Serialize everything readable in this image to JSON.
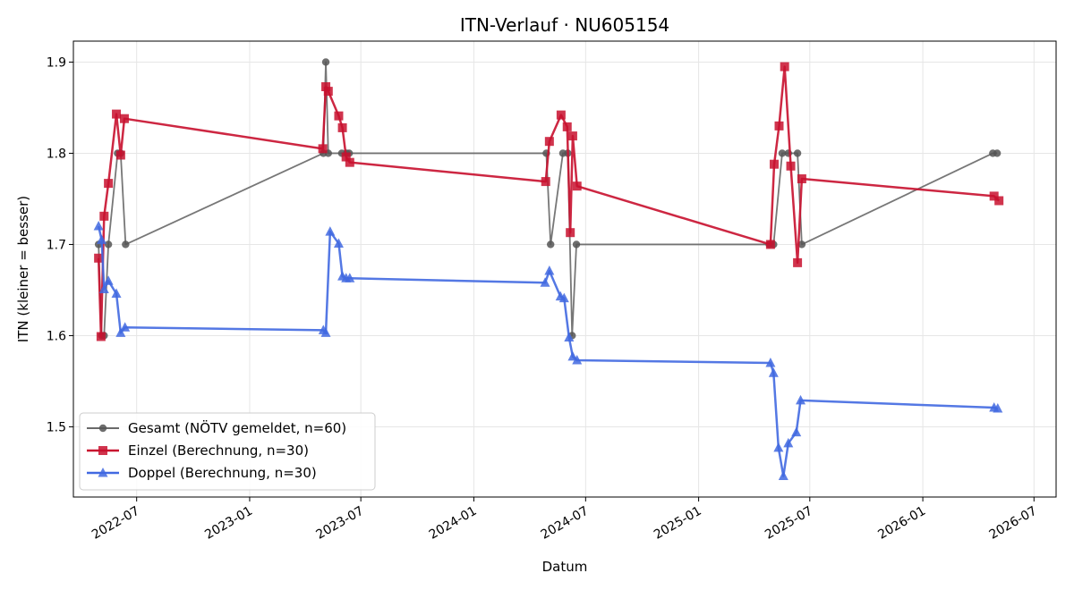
{
  "chart_data": {
    "type": "line",
    "title": "ITN-Verlauf · NU605154",
    "xlabel": "Datum",
    "ylabel": "ITN  (kleiner = besser)",
    "x_axis": "date",
    "xlim": [
      "2022-03-20",
      "2026-08-06"
    ],
    "ylim": [
      1.423,
      1.923
    ],
    "x_ticks": [
      "2022-07",
      "2023-01",
      "2023-07",
      "2024-01",
      "2024-07",
      "2025-01",
      "2025-07",
      "2026-01",
      "2026-07"
    ],
    "y_ticks": [
      1.5,
      1.6,
      1.7,
      1.8,
      1.9
    ],
    "grid": true,
    "legend_position": "lower-left",
    "series": [
      {
        "name": "Gesamt (NÖTV gemeldet, n=60)",
        "color": "#555555",
        "marker": "circle",
        "points": [
          {
            "x": "2022-04-30",
            "y": 1.7
          },
          {
            "x": "2022-05-05",
            "y": 1.6
          },
          {
            "x": "2022-05-09",
            "y": 1.6
          },
          {
            "x": "2022-05-16",
            "y": 1.7
          },
          {
            "x": "2022-05-31",
            "y": 1.8
          },
          {
            "x": "2022-06-05",
            "y": 1.8
          },
          {
            "x": "2022-06-13",
            "y": 1.7
          },
          {
            "x": "2023-05-01",
            "y": 1.8
          },
          {
            "x": "2023-05-05",
            "y": 1.9
          },
          {
            "x": "2023-05-09",
            "y": 1.8
          },
          {
            "x": "2023-05-31",
            "y": 1.8
          },
          {
            "x": "2023-06-08",
            "y": 1.8
          },
          {
            "x": "2023-06-12",
            "y": 1.8
          },
          {
            "x": "2024-04-28",
            "y": 1.8
          },
          {
            "x": "2024-05-05",
            "y": 1.7
          },
          {
            "x": "2024-05-25",
            "y": 1.8
          },
          {
            "x": "2024-06-02",
            "y": 1.8
          },
          {
            "x": "2024-06-09",
            "y": 1.6
          },
          {
            "x": "2024-06-16",
            "y": 1.7
          },
          {
            "x": "2025-04-26",
            "y": 1.7
          },
          {
            "x": "2025-05-03",
            "y": 1.7
          },
          {
            "x": "2025-05-17",
            "y": 1.8
          },
          {
            "x": "2025-05-27",
            "y": 1.8
          },
          {
            "x": "2025-06-11",
            "y": 1.8
          },
          {
            "x": "2025-06-18",
            "y": 1.7
          },
          {
            "x": "2026-04-25",
            "y": 1.8
          },
          {
            "x": "2026-05-02",
            "y": 1.8
          }
        ]
      },
      {
        "name": "Einzel (Berechnung, n=30)",
        "color": "#c8102e",
        "marker": "square",
        "points": [
          {
            "x": "2022-04-30",
            "y": 1.685
          },
          {
            "x": "2022-05-04",
            "y": 1.599
          },
          {
            "x": "2022-05-09",
            "y": 1.731
          },
          {
            "x": "2022-05-16",
            "y": 1.767
          },
          {
            "x": "2022-05-29",
            "y": 1.843
          },
          {
            "x": "2022-06-05",
            "y": 1.798
          },
          {
            "x": "2022-06-11",
            "y": 1.838
          },
          {
            "x": "2023-04-30",
            "y": 1.805
          },
          {
            "x": "2023-05-05",
            "y": 1.873
          },
          {
            "x": "2023-05-09",
            "y": 1.868
          },
          {
            "x": "2023-05-26",
            "y": 1.841
          },
          {
            "x": "2023-06-01",
            "y": 1.828
          },
          {
            "x": "2023-06-07",
            "y": 1.796
          },
          {
            "x": "2023-06-13",
            "y": 1.79
          },
          {
            "x": "2024-04-27",
            "y": 1.769
          },
          {
            "x": "2024-05-03",
            "y": 1.813
          },
          {
            "x": "2024-05-22",
            "y": 1.842
          },
          {
            "x": "2024-06-01",
            "y": 1.829
          },
          {
            "x": "2024-06-06",
            "y": 1.713
          },
          {
            "x": "2024-06-10",
            "y": 1.819
          },
          {
            "x": "2024-06-17",
            "y": 1.764
          },
          {
            "x": "2025-04-28",
            "y": 1.7
          },
          {
            "x": "2025-05-04",
            "y": 1.788
          },
          {
            "x": "2025-05-12",
            "y": 1.83
          },
          {
            "x": "2025-05-21",
            "y": 1.895
          },
          {
            "x": "2025-05-31",
            "y": 1.786
          },
          {
            "x": "2025-06-11",
            "y": 1.68
          },
          {
            "x": "2025-06-18",
            "y": 1.772
          },
          {
            "x": "2026-04-27",
            "y": 1.753
          },
          {
            "x": "2026-05-05",
            "y": 1.748
          }
        ]
      },
      {
        "name": "Doppel (Berechnung, n=30)",
        "color": "#4169e1",
        "marker": "triangle",
        "points": [
          {
            "x": "2022-04-30",
            "y": 1.72
          },
          {
            "x": "2022-05-05",
            "y": 1.705
          },
          {
            "x": "2022-05-09",
            "y": 1.651
          },
          {
            "x": "2022-05-16",
            "y": 1.66
          },
          {
            "x": "2022-05-29",
            "y": 1.646
          },
          {
            "x": "2022-06-05",
            "y": 1.603
          },
          {
            "x": "2022-06-12",
            "y": 1.609
          },
          {
            "x": "2023-05-01",
            "y": 1.606
          },
          {
            "x": "2023-05-05",
            "y": 1.603
          },
          {
            "x": "2023-05-12",
            "y": 1.714
          },
          {
            "x": "2023-05-26",
            "y": 1.701
          },
          {
            "x": "2023-06-01",
            "y": 1.665
          },
          {
            "x": "2023-06-07",
            "y": 1.663
          },
          {
            "x": "2023-06-13",
            "y": 1.663
          },
          {
            "x": "2024-04-26",
            "y": 1.658
          },
          {
            "x": "2024-05-03",
            "y": 1.671
          },
          {
            "x": "2024-05-21",
            "y": 1.643
          },
          {
            "x": "2024-05-27",
            "y": 1.641
          },
          {
            "x": "2024-06-04",
            "y": 1.598
          },
          {
            "x": "2024-06-10",
            "y": 1.577
          },
          {
            "x": "2024-06-17",
            "y": 1.573
          },
          {
            "x": "2025-04-28",
            "y": 1.57
          },
          {
            "x": "2025-05-03",
            "y": 1.559
          },
          {
            "x": "2025-05-11",
            "y": 1.477
          },
          {
            "x": "2025-05-19",
            "y": 1.446
          },
          {
            "x": "2025-05-27",
            "y": 1.482
          },
          {
            "x": "2025-06-09",
            "y": 1.494
          },
          {
            "x": "2025-06-16",
            "y": 1.529
          },
          {
            "x": "2026-04-27",
            "y": 1.521
          },
          {
            "x": "2026-05-03",
            "y": 1.52
          }
        ]
      }
    ]
  }
}
